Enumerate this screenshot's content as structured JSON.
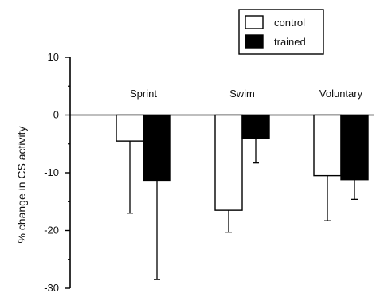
{
  "chart_data": {
    "type": "bar",
    "ylabel": "% change in CS activity",
    "ylim": [
      -30,
      10
    ],
    "yticks": [
      10,
      0,
      -10,
      -20,
      -30
    ],
    "ytick_labels": [
      "10",
      "0",
      "-10",
      "-20",
      "-30"
    ],
    "categories": [
      "Sprint",
      "Swim",
      "Voluntary"
    ],
    "series": [
      {
        "name": "control",
        "color": "#ffffff",
        "values": [
          -4.5,
          -16.5,
          -10.5
        ],
        "errors": [
          12.5,
          3.8,
          7.8
        ]
      },
      {
        "name": "trained",
        "color": "#000000",
        "values": [
          -11.3,
          -4.0,
          -11.2
        ],
        "errors": [
          17.2,
          4.3,
          3.4
        ]
      }
    ],
    "error_direction": "down",
    "legend": "top-right",
    "grid": false
  }
}
